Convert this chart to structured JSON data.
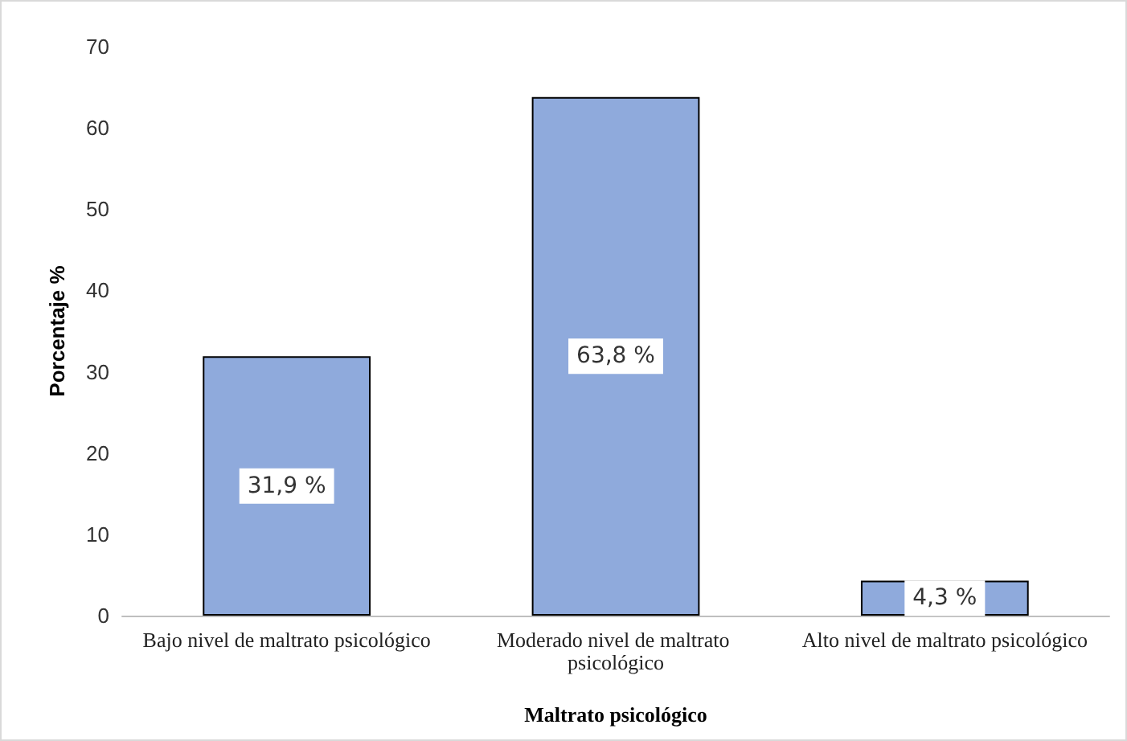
{
  "chart_data": {
    "type": "bar",
    "xlabel": "Maltrato psicológico",
    "ylabel": "Porcentaje %",
    "categories": [
      "Bajo nivel de maltrato psicológico",
      "Moderado nivel de maltrato psicológico",
      "Alto nivel de maltrato psicológico"
    ],
    "values": [
      31.9,
      63.8,
      4.3
    ],
    "value_labels": [
      "31,9 %",
      "63,8 %",
      "4,3 %"
    ],
    "color": "#8faadc",
    "ylim": [
      0,
      70
    ],
    "yticks": [
      0,
      10,
      20,
      30,
      40,
      50,
      60,
      70
    ],
    "grid": false
  }
}
